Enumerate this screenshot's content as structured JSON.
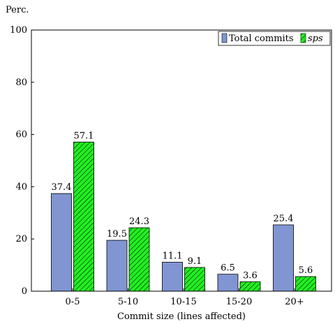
{
  "chart_data": {
    "type": "bar",
    "title": "",
    "xlabel": "Commit size (lines affected)",
    "ylabel": "Perc.",
    "categories": [
      "0-5",
      "5-10",
      "10-15",
      "15-20",
      "20+"
    ],
    "series": [
      {
        "name": "Total commits",
        "values": [
          37.4,
          19.5,
          11.1,
          6.5,
          25.4
        ],
        "color": "#8095d2",
        "pattern": "solid"
      },
      {
        "name": "sps",
        "values": [
          57.1,
          24.3,
          9.1,
          3.6,
          5.6
        ],
        "color": "#22ee22",
        "pattern": "diagonal-hatch"
      }
    ],
    "ylim": [
      0,
      100
    ],
    "yticks": [
      0,
      20,
      40,
      60,
      80,
      100
    ],
    "grid": false,
    "legend_position": "top-right",
    "data_labels": true
  }
}
